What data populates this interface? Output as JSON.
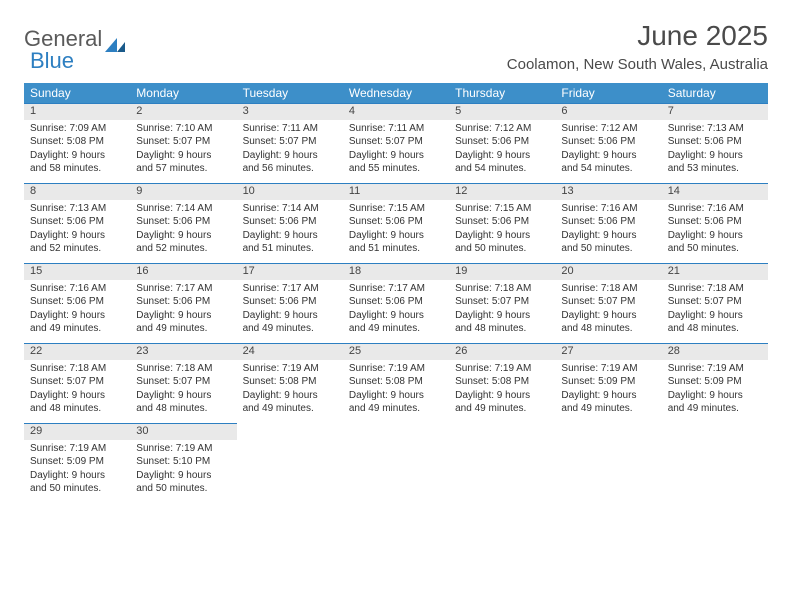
{
  "brand": {
    "part1": "General",
    "part2": "Blue"
  },
  "title": "June 2025",
  "location": "Coolamon, New South Wales, Australia",
  "colors": {
    "header_bg": "#3d8fc9",
    "header_text": "#ffffff",
    "daynum_bg": "#e9e9e9",
    "row_border": "#2d7fc1",
    "text": "#333333",
    "title_color": "#4a4a4a",
    "logo_gray": "#5a5a5a",
    "logo_blue": "#2d7fc1"
  },
  "layout": {
    "columns": 7,
    "rows": 5
  },
  "day_headers": [
    "Sunday",
    "Monday",
    "Tuesday",
    "Wednesday",
    "Thursday",
    "Friday",
    "Saturday"
  ],
  "weeks": [
    [
      {
        "n": "1",
        "sr": "Sunrise: 7:09 AM",
        "ss": "Sunset: 5:08 PM",
        "dl": "Daylight: 9 hours and 58 minutes."
      },
      {
        "n": "2",
        "sr": "Sunrise: 7:10 AM",
        "ss": "Sunset: 5:07 PM",
        "dl": "Daylight: 9 hours and 57 minutes."
      },
      {
        "n": "3",
        "sr": "Sunrise: 7:11 AM",
        "ss": "Sunset: 5:07 PM",
        "dl": "Daylight: 9 hours and 56 minutes."
      },
      {
        "n": "4",
        "sr": "Sunrise: 7:11 AM",
        "ss": "Sunset: 5:07 PM",
        "dl": "Daylight: 9 hours and 55 minutes."
      },
      {
        "n": "5",
        "sr": "Sunrise: 7:12 AM",
        "ss": "Sunset: 5:06 PM",
        "dl": "Daylight: 9 hours and 54 minutes."
      },
      {
        "n": "6",
        "sr": "Sunrise: 7:12 AM",
        "ss": "Sunset: 5:06 PM",
        "dl": "Daylight: 9 hours and 54 minutes."
      },
      {
        "n": "7",
        "sr": "Sunrise: 7:13 AM",
        "ss": "Sunset: 5:06 PM",
        "dl": "Daylight: 9 hours and 53 minutes."
      }
    ],
    [
      {
        "n": "8",
        "sr": "Sunrise: 7:13 AM",
        "ss": "Sunset: 5:06 PM",
        "dl": "Daylight: 9 hours and 52 minutes."
      },
      {
        "n": "9",
        "sr": "Sunrise: 7:14 AM",
        "ss": "Sunset: 5:06 PM",
        "dl": "Daylight: 9 hours and 52 minutes."
      },
      {
        "n": "10",
        "sr": "Sunrise: 7:14 AM",
        "ss": "Sunset: 5:06 PM",
        "dl": "Daylight: 9 hours and 51 minutes."
      },
      {
        "n": "11",
        "sr": "Sunrise: 7:15 AM",
        "ss": "Sunset: 5:06 PM",
        "dl": "Daylight: 9 hours and 51 minutes."
      },
      {
        "n": "12",
        "sr": "Sunrise: 7:15 AM",
        "ss": "Sunset: 5:06 PM",
        "dl": "Daylight: 9 hours and 50 minutes."
      },
      {
        "n": "13",
        "sr": "Sunrise: 7:16 AM",
        "ss": "Sunset: 5:06 PM",
        "dl": "Daylight: 9 hours and 50 minutes."
      },
      {
        "n": "14",
        "sr": "Sunrise: 7:16 AM",
        "ss": "Sunset: 5:06 PM",
        "dl": "Daylight: 9 hours and 50 minutes."
      }
    ],
    [
      {
        "n": "15",
        "sr": "Sunrise: 7:16 AM",
        "ss": "Sunset: 5:06 PM",
        "dl": "Daylight: 9 hours and 49 minutes."
      },
      {
        "n": "16",
        "sr": "Sunrise: 7:17 AM",
        "ss": "Sunset: 5:06 PM",
        "dl": "Daylight: 9 hours and 49 minutes."
      },
      {
        "n": "17",
        "sr": "Sunrise: 7:17 AM",
        "ss": "Sunset: 5:06 PM",
        "dl": "Daylight: 9 hours and 49 minutes."
      },
      {
        "n": "18",
        "sr": "Sunrise: 7:17 AM",
        "ss": "Sunset: 5:06 PM",
        "dl": "Daylight: 9 hours and 49 minutes."
      },
      {
        "n": "19",
        "sr": "Sunrise: 7:18 AM",
        "ss": "Sunset: 5:07 PM",
        "dl": "Daylight: 9 hours and 48 minutes."
      },
      {
        "n": "20",
        "sr": "Sunrise: 7:18 AM",
        "ss": "Sunset: 5:07 PM",
        "dl": "Daylight: 9 hours and 48 minutes."
      },
      {
        "n": "21",
        "sr": "Sunrise: 7:18 AM",
        "ss": "Sunset: 5:07 PM",
        "dl": "Daylight: 9 hours and 48 minutes."
      }
    ],
    [
      {
        "n": "22",
        "sr": "Sunrise: 7:18 AM",
        "ss": "Sunset: 5:07 PM",
        "dl": "Daylight: 9 hours and 48 minutes."
      },
      {
        "n": "23",
        "sr": "Sunrise: 7:18 AM",
        "ss": "Sunset: 5:07 PM",
        "dl": "Daylight: 9 hours and 48 minutes."
      },
      {
        "n": "24",
        "sr": "Sunrise: 7:19 AM",
        "ss": "Sunset: 5:08 PM",
        "dl": "Daylight: 9 hours and 49 minutes."
      },
      {
        "n": "25",
        "sr": "Sunrise: 7:19 AM",
        "ss": "Sunset: 5:08 PM",
        "dl": "Daylight: 9 hours and 49 minutes."
      },
      {
        "n": "26",
        "sr": "Sunrise: 7:19 AM",
        "ss": "Sunset: 5:08 PM",
        "dl": "Daylight: 9 hours and 49 minutes."
      },
      {
        "n": "27",
        "sr": "Sunrise: 7:19 AM",
        "ss": "Sunset: 5:09 PM",
        "dl": "Daylight: 9 hours and 49 minutes."
      },
      {
        "n": "28",
        "sr": "Sunrise: 7:19 AM",
        "ss": "Sunset: 5:09 PM",
        "dl": "Daylight: 9 hours and 49 minutes."
      }
    ],
    [
      {
        "n": "29",
        "sr": "Sunrise: 7:19 AM",
        "ss": "Sunset: 5:09 PM",
        "dl": "Daylight: 9 hours and 50 minutes."
      },
      {
        "n": "30",
        "sr": "Sunrise: 7:19 AM",
        "ss": "Sunset: 5:10 PM",
        "dl": "Daylight: 9 hours and 50 minutes."
      },
      null,
      null,
      null,
      null,
      null
    ]
  ]
}
